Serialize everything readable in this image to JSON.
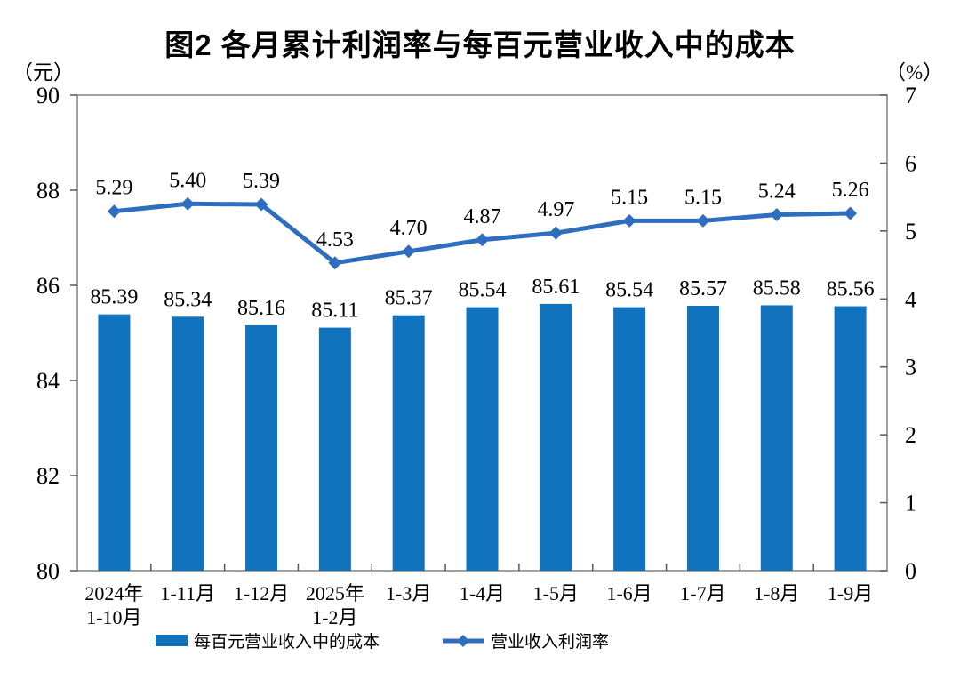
{
  "title": "图2 各月累计利润率与每百元营业收入中的成本",
  "left_axis_unit": "（元）",
  "right_axis_unit": "（%）",
  "legend": {
    "bars_label": "每百元营业收入中的成本",
    "line_label": "营业收入利润率"
  },
  "colors": {
    "bar": "#1172BD",
    "line": "#2F6EBE",
    "axis": "#808080",
    "tick": "#595959",
    "text": "#000000"
  },
  "chart_data": {
    "type": "bar+line combo",
    "title": "图2 各月累计利润率与每百元营业收入中的成本",
    "categories": [
      [
        "2024年",
        "1-10月"
      ],
      [
        "1-11月"
      ],
      [
        "1-12月"
      ],
      [
        "2025年",
        "1-2月"
      ],
      [
        "1-3月"
      ],
      [
        "1-4月"
      ],
      [
        "1-5月"
      ],
      [
        "1-6月"
      ],
      [
        "1-7月"
      ],
      [
        "1-8月"
      ],
      [
        "1-9月"
      ]
    ],
    "series": [
      {
        "name": "每百元营业收入中的成本",
        "type": "bar",
        "axis": "left",
        "values": [
          85.39,
          85.34,
          85.16,
          85.11,
          85.37,
          85.54,
          85.61,
          85.54,
          85.57,
          85.58,
          85.56
        ]
      },
      {
        "name": "营业收入利润率",
        "type": "line",
        "axis": "right",
        "marker": "diamond",
        "values": [
          5.29,
          5.4,
          5.39,
          4.53,
          4.7,
          4.87,
          4.97,
          5.15,
          5.15,
          5.24,
          5.26
        ]
      }
    ],
    "left_axis": {
      "unit": "（元）",
      "min": 80,
      "max": 90,
      "ticks": [
        90,
        88,
        86,
        84,
        82,
        80
      ]
    },
    "right_axis": {
      "unit": "（%）",
      "min": 0,
      "max": 7,
      "ticks": [
        7,
        6,
        5,
        4,
        3,
        2,
        1,
        0
      ]
    },
    "grid": false,
    "data_labels": true,
    "legend_position": "bottom"
  }
}
